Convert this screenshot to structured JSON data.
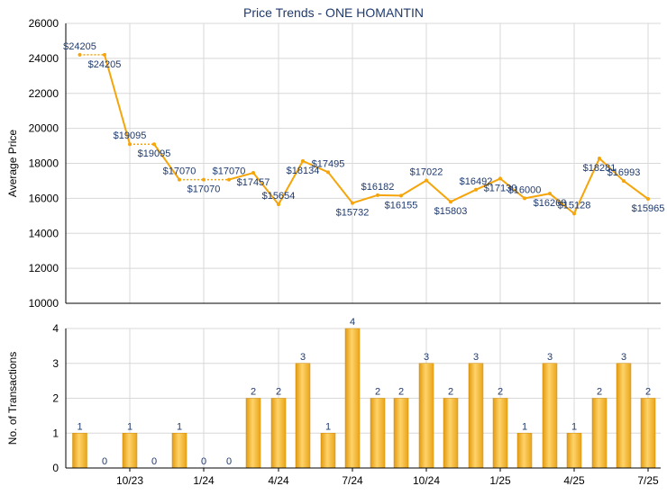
{
  "title": "Price Trends - ONE HOMANTIN",
  "colors": {
    "line": "#f5a50a",
    "bar": "#f0b020",
    "grid": "#d8d8d8",
    "label": "#1f3a6e",
    "axis": "#000000"
  },
  "chart_data": [
    {
      "type": "line",
      "ylabel": "Average Price",
      "ylim": [
        10000,
        26000
      ],
      "yticks": [
        "10000",
        "12000",
        "14000",
        "16000",
        "18000",
        "20000",
        "22000",
        "24000",
        "26000"
      ],
      "x_tick_labels": [
        "10/23",
        "1/24",
        "4/24",
        "7/24",
        "10/24",
        "1/25",
        "4/25",
        "7/25"
      ],
      "values": [
        24205,
        24205,
        19095,
        19095,
        17070,
        17070,
        17070,
        17457,
        15654,
        18134,
        17495,
        15732,
        16182,
        16155,
        17022,
        15803,
        16492,
        17130,
        16000,
        16268,
        15128,
        18281,
        16993,
        15965
      ],
      "labels": [
        "$24205",
        "$24205",
        "$19095",
        "$19095",
        "$17070",
        "$17070",
        "$17070",
        "$17457",
        "$15654",
        "$18134",
        "$17495",
        "$15732",
        "$16182",
        "$16155",
        "$17022",
        "$15803",
        "$16492",
        "$17130",
        "$16000",
        "$16268",
        "$15128",
        "$18281",
        "$16993",
        "$15965"
      ],
      "dashed_segments_after": [
        0,
        2,
        4,
        5
      ]
    },
    {
      "type": "bar",
      "ylabel": "No. of Transactions",
      "ylim": [
        0,
        4
      ],
      "yticks": [
        "0",
        "1",
        "2",
        "3",
        "4"
      ],
      "x_tick_labels": [
        "10/23",
        "1/24",
        "4/24",
        "7/24",
        "10/24",
        "1/25",
        "4/25",
        "7/25"
      ],
      "values": [
        1,
        0,
        1,
        0,
        1,
        0,
        0,
        2,
        2,
        3,
        1,
        4,
        2,
        2,
        3,
        2,
        3,
        2,
        1,
        3,
        1,
        2,
        3,
        2
      ],
      "labels": [
        "1",
        "0",
        "1",
        "0",
        "1",
        "0",
        "0",
        "2",
        "2",
        "3",
        "1",
        "4",
        "2",
        "2",
        "3",
        "2",
        "3",
        "2",
        "1",
        "3",
        "1",
        "2",
        "3",
        "2"
      ]
    }
  ]
}
